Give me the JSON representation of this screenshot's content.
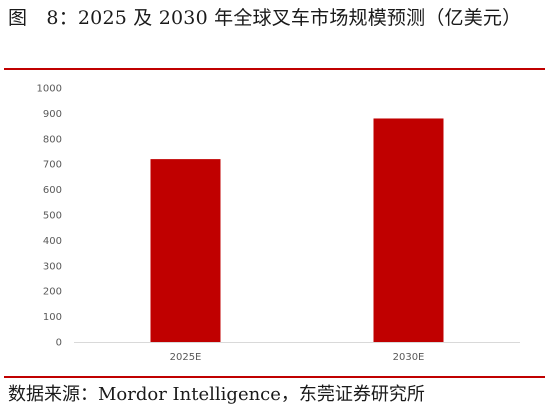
{
  "caption": {
    "label": "图　8：",
    "text": "2025 及 2030 年全球叉车市场规模预测（亿美元）"
  },
  "source": {
    "text": "数据来源：Mordor Intelligence，东莞证券研究所"
  },
  "colors": {
    "rule": "#c00000",
    "bar": "#c00000",
    "axis": "#d9d9d9",
    "tick_text": "#595959"
  },
  "chart_data": {
    "type": "bar",
    "categories": [
      "2025E",
      "2030E"
    ],
    "values": [
      720,
      880
    ],
    "y_ticks": [
      "0",
      "100",
      "200",
      "300",
      "400",
      "500",
      "600",
      "700",
      "800",
      "900",
      "1000"
    ],
    "ylim": [
      0,
      1000
    ],
    "grid": false,
    "legend": "none"
  }
}
